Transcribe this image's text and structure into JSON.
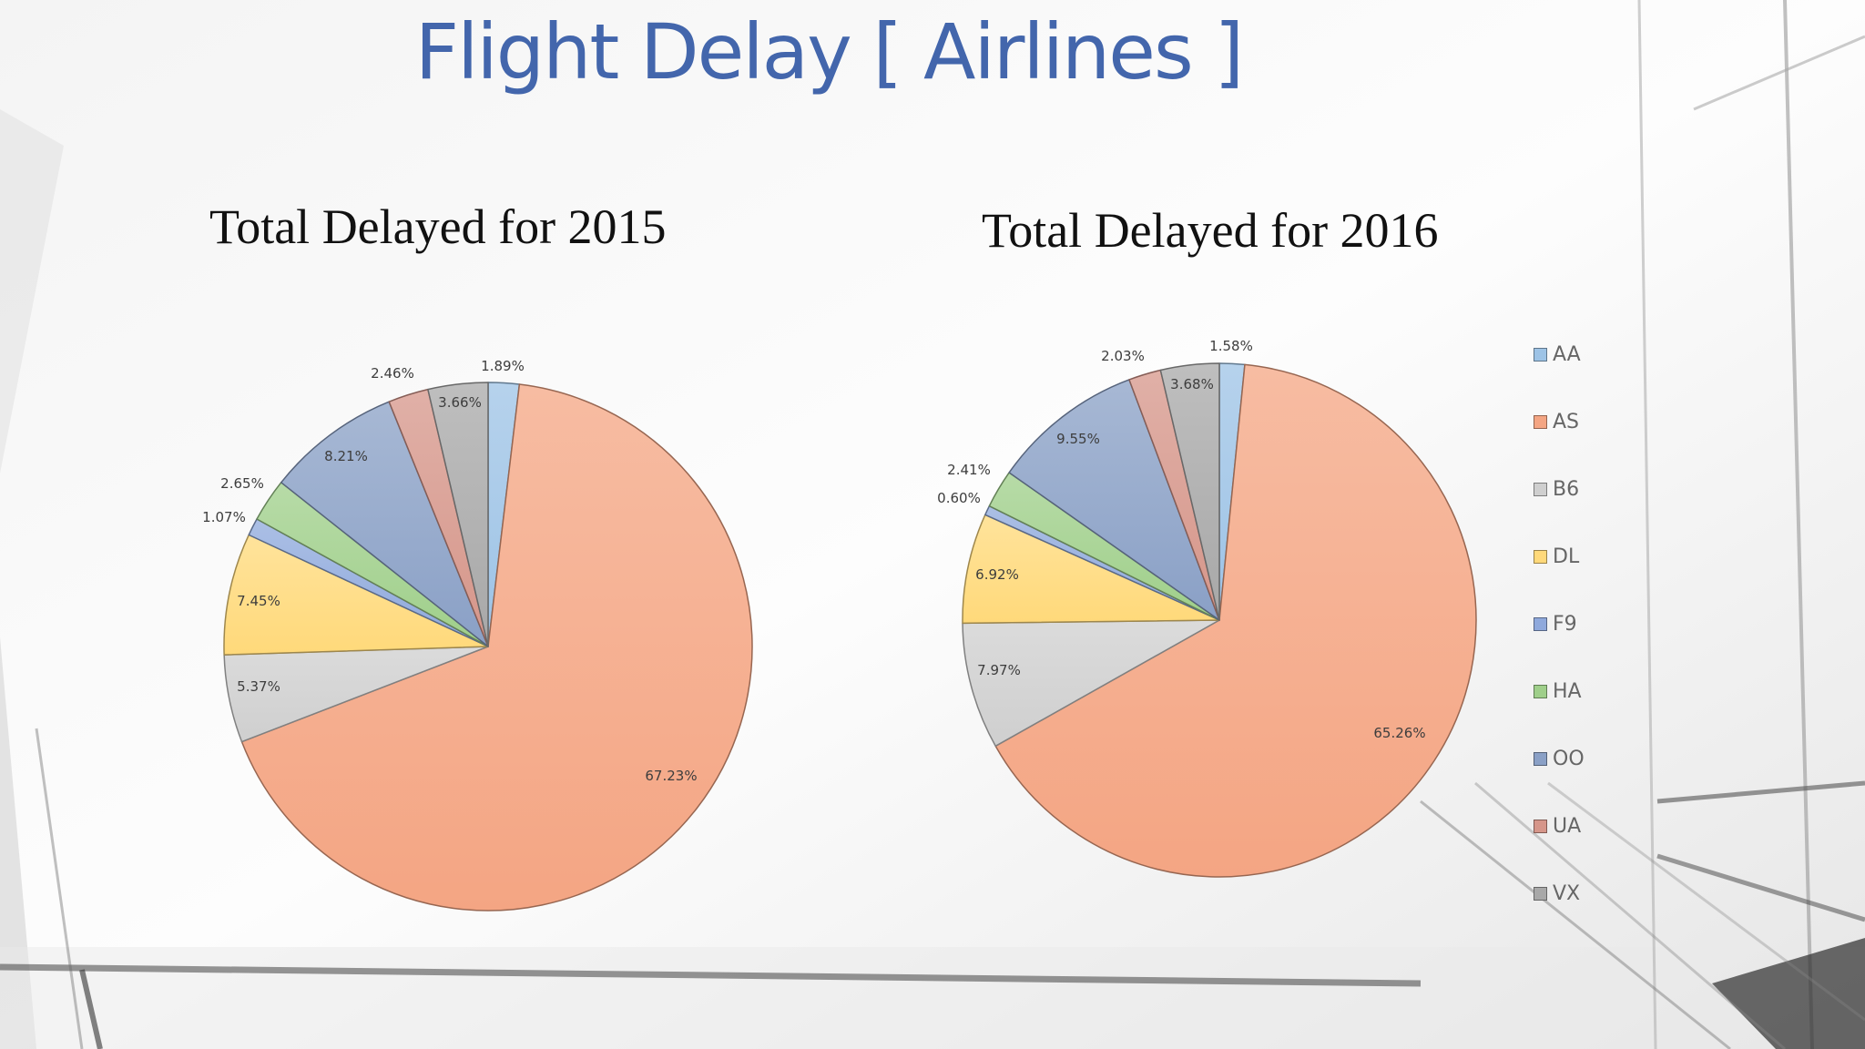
{
  "slide": {
    "title": "Flight Delay [ Airlines ]"
  },
  "colors": {
    "AA": "#9dc3e6",
    "AS": "#f4a583",
    "B6": "#cfcfcf",
    "DL": "#ffd97a",
    "F9": "#8fa9dc",
    "HA": "#9fcf8a",
    "OO": "#8aa0c6",
    "UA": "#d6968a",
    "VX": "#a8a8a8"
  },
  "chart_data": [
    {
      "type": "pie",
      "title": "Total Delayed for 2015",
      "categories": [
        "AA",
        "AS",
        "B6",
        "DL",
        "F9",
        "HA",
        "OO",
        "UA",
        "VX"
      ],
      "values": [
        1.89,
        67.23,
        5.37,
        7.45,
        1.07,
        2.65,
        8.21,
        2.46,
        3.66
      ],
      "labels": [
        "1.89%",
        "67.23%",
        "5.37%",
        "7.45%",
        "1.07%",
        "2.65%",
        "8.21%",
        "2.46%",
        "3.66%"
      ]
    },
    {
      "type": "pie",
      "title": "Total Delayed for 2016",
      "categories": [
        "AA",
        "AS",
        "B6",
        "DL",
        "F9",
        "HA",
        "OO",
        "UA",
        "VX"
      ],
      "values": [
        1.58,
        65.26,
        7.97,
        6.92,
        0.6,
        2.41,
        9.55,
        2.03,
        3.68
      ],
      "labels": [
        "1.58%",
        "65.26%",
        "7.97%",
        "6.92%",
        "0.60%",
        "2.41%",
        "9.55%",
        "2.03%",
        "3.68%"
      ],
      "legend": [
        "AA",
        "AS",
        "B6",
        "DL",
        "F9",
        "HA",
        "OO",
        "UA",
        "VX"
      ]
    }
  ]
}
